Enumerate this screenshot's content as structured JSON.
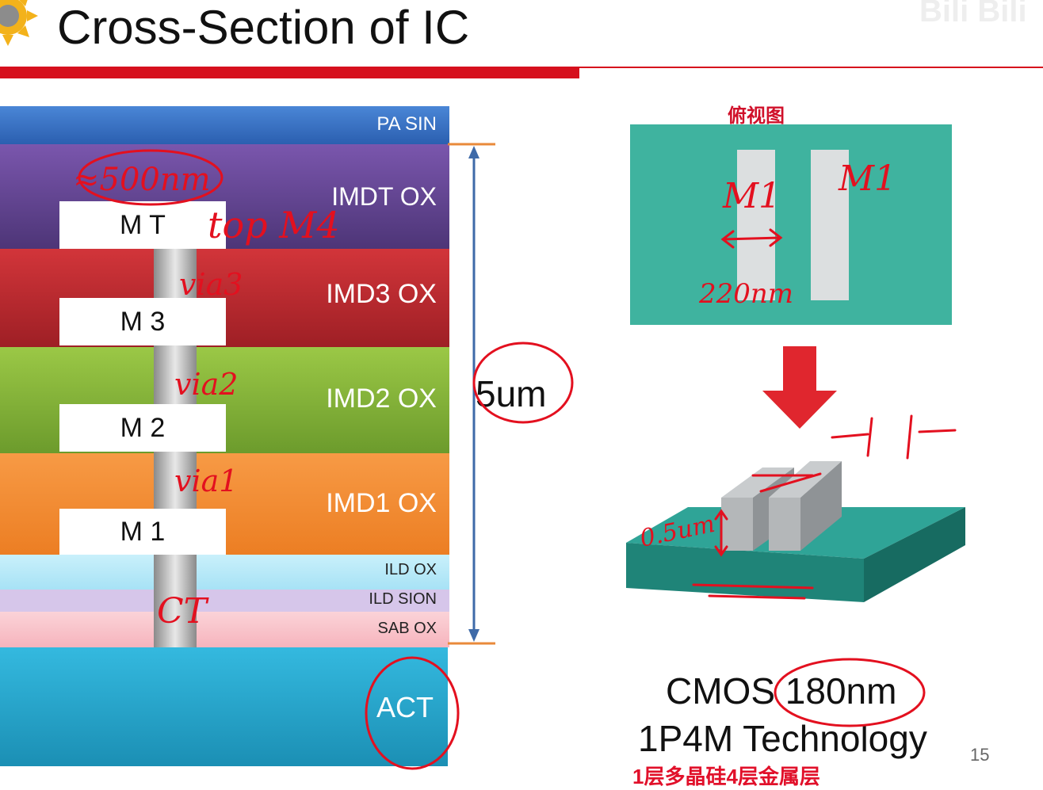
{
  "title": "Cross-Section of IC",
  "watermark": "Bili Bili",
  "page_number": "15",
  "layers": {
    "pa_sin": "PA SIN",
    "imdt_ox": "IMDT OX",
    "imd3_ox": "IMD3 OX",
    "imd2_ox": "IMD2 OX",
    "imd1_ox": "IMD1 OX",
    "ild_ox": "ILD OX",
    "ild_sion": "ILD SION",
    "sab_ox": "SAB OX",
    "act": "ACT"
  },
  "metals": {
    "mt": "M T",
    "m3": "M 3",
    "m2": "M 2",
    "m1": "M 1"
  },
  "scale_label": "5um",
  "top_view_label": "俯视图",
  "tech": {
    "line1": "CMOS 180nm",
    "line2": "1P4M Technology",
    "line3": "1层多晶硅4层金属层"
  },
  "handwritten": {
    "thickness": "≈500nm",
    "top_metal": "top M4",
    "via3": "via3",
    "via2": "via2",
    "via1": "via1",
    "contact": "CT",
    "m1_left": "M1",
    "m1_right": "M1",
    "width": "220nm",
    "height": "0.5um"
  },
  "colors": {
    "annotation_red": "#e3101f",
    "accent_red": "#d6101d",
    "teal": "#3fb39f"
  }
}
